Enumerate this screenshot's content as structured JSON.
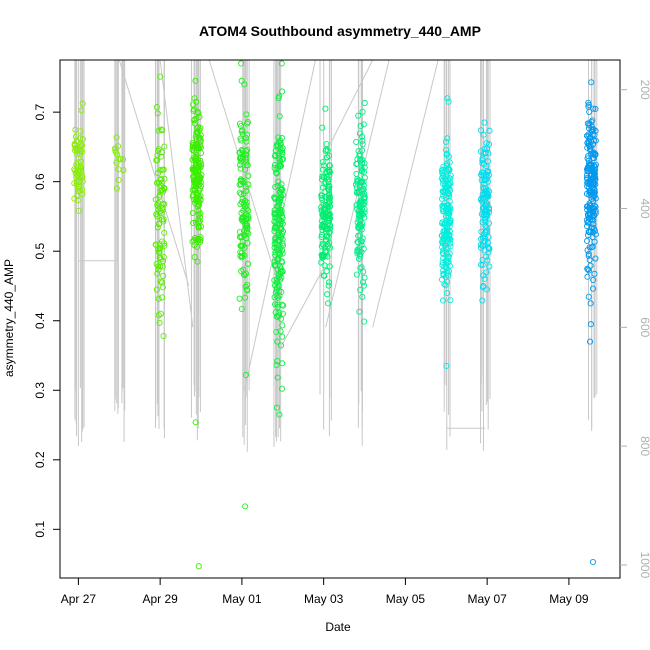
{
  "chart_data": {
    "type": "scatter",
    "title": "ATOM4 Southbound asymmetry_440_AMP",
    "xlabel": "Date",
    "ylabel": "asymmetry_440_AMP",
    "x_ticks": [
      "Apr 27",
      "Apr 29",
      "May 01",
      "May 03",
      "May 05",
      "May 07",
      "May 09"
    ],
    "x_tick_dates": [
      0,
      2,
      4,
      6,
      8,
      10,
      12
    ],
    "x_range_days": [
      -0.45,
      13.25
    ],
    "ylim": [
      0.03,
      0.775
    ],
    "y_ticks": [
      0.1,
      0.2,
      0.3,
      0.4,
      0.5,
      0.6,
      0.7
    ],
    "secondary_axis": {
      "side": "right",
      "color": "#b0b0b0",
      "ticks": [
        200,
        400,
        600,
        800,
        1000
      ],
      "range": [
        1022,
        150
      ],
      "reversed": true
    },
    "grid": false,
    "legend": "none",
    "marker": "open-circle",
    "colormap": "hue from yellow-green to blue over time",
    "depth_color": "#c8c8c8",
    "clusters": [
      {
        "day": 0.0,
        "color": "#88ee00",
        "n": 60,
        "mean": 0.62,
        "sd": 0.035,
        "outliers": []
      },
      {
        "day": 1.0,
        "color": "#80ee00",
        "n": 14,
        "mean": 0.625,
        "sd": 0.02,
        "outliers": []
      },
      {
        "day": 2.0,
        "color": "#55ee00",
        "n": 90,
        "mean": 0.56,
        "sd": 0.075,
        "outliers": [
          0.408,
          0.41
        ]
      },
      {
        "day": 2.9,
        "color": "#3aee00",
        "n": 170,
        "mean": 0.61,
        "sd": 0.045,
        "outliers": [
          0.254,
          0.047,
          0.72,
          0.485
        ]
      },
      {
        "day": 4.05,
        "color": "#22ee22",
        "n": 120,
        "mean": 0.56,
        "sd": 0.07,
        "outliers": [
          0.133,
          0.322,
          0.745,
          0.74
        ]
      },
      {
        "day": 4.9,
        "color": "#10ee40",
        "n": 190,
        "mean": 0.53,
        "sd": 0.08,
        "outliers": [
          0.265,
          0.275,
          0.342,
          0.37
        ]
      },
      {
        "day": 6.05,
        "color": "#00ee70",
        "n": 140,
        "mean": 0.55,
        "sd": 0.05,
        "outliers": [
          0.705,
          0.425
        ]
      },
      {
        "day": 6.9,
        "color": "#00ee88",
        "n": 130,
        "mean": 0.57,
        "sd": 0.06,
        "outliers": []
      },
      {
        "day": 9.0,
        "color": "#00eedd",
        "n": 170,
        "mean": 0.54,
        "sd": 0.055,
        "outliers": [
          0.335,
          0.72,
          0.715
        ]
      },
      {
        "day": 9.95,
        "color": "#00ddee",
        "n": 120,
        "mean": 0.56,
        "sd": 0.05,
        "outliers": [
          0.45,
          0.445,
          0.685
        ]
      },
      {
        "day": 12.55,
        "color": "#0099ee",
        "n": 190,
        "mean": 0.59,
        "sd": 0.055,
        "outliers": [
          0.053,
          0.743,
          0.705,
          0.395,
          0.37
        ]
      }
    ]
  }
}
